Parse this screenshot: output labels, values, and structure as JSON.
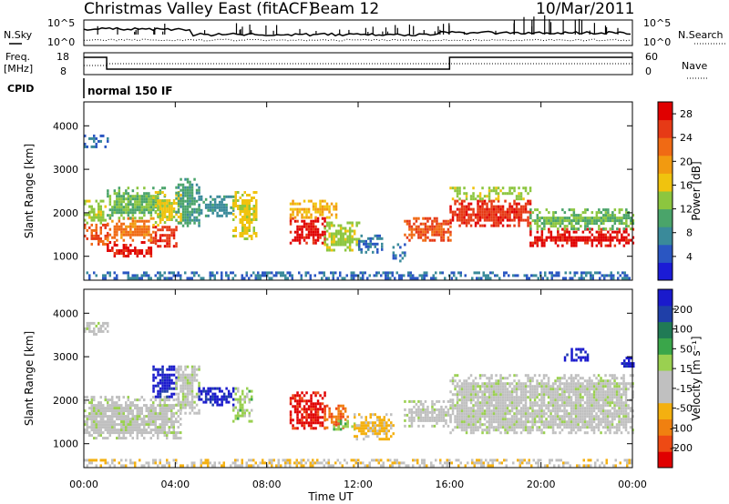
{
  "header": {
    "title": "Christmas Valley East (fitACF)",
    "beam": "Beam 12",
    "date": "10/Mar/2011"
  },
  "top_panels": {
    "nsky_label": "N.Sky",
    "nsky_ticks": [
      "10^5",
      "10^0"
    ],
    "nsearch_label": "N.Search",
    "nsearch_ticks": [
      "10^5",
      "10^0"
    ],
    "freq_label": "Freq.",
    "freq_unit": "[MHz]",
    "freq_ticks": [
      "18",
      "8"
    ],
    "nave_label": "Nave",
    "nave_ticks": [
      "60",
      "0"
    ],
    "cpid_label": "CPID",
    "cpid_value": "normal 150 IF"
  },
  "colors": {
    "power_scale": [
      "#1b1bd6",
      "#2a56c2",
      "#3a8a9a",
      "#4aa46a",
      "#8cc63f",
      "#f0c30e",
      "#f29a10",
      "#f06a14",
      "#e63a16",
      "#e00000"
    ],
    "velocity_scale": [
      "#1a1acc",
      "#1f3fa8",
      "#207a55",
      "#3aa64a",
      "#9ad050",
      "#c0c0c0",
      "#c0c0c0",
      "#f4b010",
      "#f08010",
      "#ee4a14",
      "#e00000"
    ]
  },
  "chart_data": [
    {
      "type": "heatmap",
      "name": "Power",
      "ylabel": "Slant Range [km]",
      "yticks": [
        1000,
        2000,
        3000,
        4000
      ],
      "ylim": [
        450,
        4550
      ],
      "xlabel": "Time UT",
      "xticks": [
        "00:00",
        "04:00",
        "08:00",
        "12:00",
        "16:00",
        "20:00",
        "00:00"
      ],
      "xlim_hours": [
        0,
        24
      ],
      "colorbar": {
        "label": "Power [dB]",
        "ticks": [
          4,
          8,
          12,
          16,
          20,
          24,
          28
        ],
        "range": [
          0,
          30
        ]
      },
      "regions": [
        {
          "t": [
            0.0,
            1.0
          ],
          "r": [
            1250,
            1750
          ],
          "value": 24
        },
        {
          "t": [
            0.0,
            1.0
          ],
          "r": [
            1750,
            2300
          ],
          "value": 14
        },
        {
          "t": [
            0.0,
            1.0
          ],
          "r": [
            3500,
            3800
          ],
          "value": 6
        },
        {
          "t": [
            1.0,
            3.0
          ],
          "r": [
            1000,
            1350
          ],
          "value": 28
        },
        {
          "t": [
            1.0,
            3.0
          ],
          "r": [
            1350,
            1900
          ],
          "value": 22
        },
        {
          "t": [
            1.0,
            3.5
          ],
          "r": [
            1900,
            2600
          ],
          "value": 12
        },
        {
          "t": [
            3.0,
            4.0
          ],
          "r": [
            1250,
            1700
          ],
          "value": 26
        },
        {
          "t": [
            3.0,
            4.2
          ],
          "r": [
            1700,
            2500
          ],
          "value": 16
        },
        {
          "t": [
            4.0,
            5.0
          ],
          "r": [
            1700,
            2800
          ],
          "value": 10
        },
        {
          "t": [
            5.0,
            6.5
          ],
          "r": [
            1900,
            2400
          ],
          "value": 8
        },
        {
          "t": [
            6.5,
            7.5
          ],
          "r": [
            1400,
            2500
          ],
          "value": 16
        },
        {
          "t": [
            9.0,
            10.5
          ],
          "r": [
            1300,
            1900
          ],
          "value": 28
        },
        {
          "t": [
            9.0,
            11.0
          ],
          "r": [
            1900,
            2300
          ],
          "value": 18
        },
        {
          "t": [
            10.5,
            12.0
          ],
          "r": [
            1150,
            1800
          ],
          "value": 14
        },
        {
          "t": [
            12.0,
            13.0
          ],
          "r": [
            1100,
            1500
          ],
          "value": 6
        },
        {
          "t": [
            13.5,
            14.0
          ],
          "r": [
            900,
            1300
          ],
          "value": 6
        },
        {
          "t": [
            14.0,
            16.0
          ],
          "r": [
            1350,
            1900
          ],
          "value": 24
        },
        {
          "t": [
            16.0,
            19.5
          ],
          "r": [
            1700,
            2300
          ],
          "value": 26
        },
        {
          "t": [
            16.0,
            19.5
          ],
          "r": [
            2300,
            2600
          ],
          "value": 14
        },
        {
          "t": [
            19.5,
            24.0
          ],
          "r": [
            1250,
            1650
          ],
          "value": 28
        },
        {
          "t": [
            19.5,
            24.0
          ],
          "r": [
            1650,
            2100
          ],
          "value": 12
        },
        {
          "t": [
            0.0,
            24.0
          ],
          "r": [
            480,
            650
          ],
          "value": 6
        }
      ]
    },
    {
      "type": "heatmap",
      "name": "Velocity",
      "ylabel": "Slant Range [km]",
      "yticks": [
        1000,
        2000,
        3000,
        4000
      ],
      "ylim": [
        450,
        4550
      ],
      "xlabel": "Time UT",
      "xticks": [
        "00:00",
        "04:00",
        "08:00",
        "12:00",
        "16:00",
        "20:00",
        "00:00"
      ],
      "xlim_hours": [
        0,
        24
      ],
      "colorbar": {
        "label": "Velocity [m s⁻¹]",
        "ticks": [
          200,
          100,
          50,
          15,
          -15,
          -50,
          -100,
          -200
        ],
        "range": [
          -250,
          250
        ]
      },
      "regions": [
        {
          "t": [
            0.0,
            4.2
          ],
          "r": [
            1150,
            2100
          ],
          "value": 0
        },
        {
          "t": [
            0.0,
            1.0
          ],
          "r": [
            3500,
            3800
          ],
          "value": 0
        },
        {
          "t": [
            3.0,
            4.0
          ],
          "r": [
            2100,
            2800
          ],
          "value": 220
        },
        {
          "t": [
            4.0,
            5.0
          ],
          "r": [
            1700,
            2800
          ],
          "value": 0
        },
        {
          "t": [
            5.0,
            6.5
          ],
          "r": [
            1900,
            2300
          ],
          "value": 220
        },
        {
          "t": [
            6.5,
            7.3
          ],
          "r": [
            1500,
            2300
          ],
          "value": 40
        },
        {
          "t": [
            9.0,
            10.5
          ],
          "r": [
            1350,
            2200
          ],
          "value": -220
        },
        {
          "t": [
            10.5,
            11.5
          ],
          "r": [
            1350,
            1900
          ],
          "value": -150
        },
        {
          "t": [
            10.8,
            11.8
          ],
          "r": [
            1300,
            1550
          ],
          "value": 60
        },
        {
          "t": [
            11.8,
            13.5
          ],
          "r": [
            1100,
            1700
          ],
          "value": -80
        },
        {
          "t": [
            14.0,
            16.0
          ],
          "r": [
            1400,
            2000
          ],
          "value": 0
        },
        {
          "t": [
            16.0,
            24.0
          ],
          "r": [
            1250,
            2600
          ],
          "value": 0
        },
        {
          "t": [
            21.0,
            22.0
          ],
          "r": [
            2900,
            3200
          ],
          "value": 220
        },
        {
          "t": [
            23.5,
            24.0
          ],
          "r": [
            2800,
            3000
          ],
          "value": 220
        },
        {
          "t": [
            0.0,
            24.0
          ],
          "r": [
            480,
            650
          ],
          "value": -60
        }
      ]
    }
  ]
}
